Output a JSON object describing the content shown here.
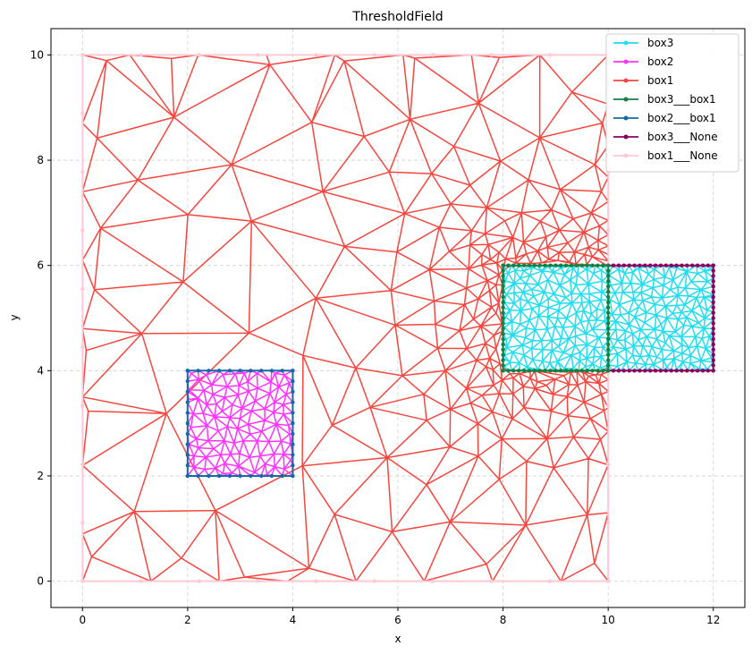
{
  "chart_data": {
    "type": "line",
    "title": "ThresholdField",
    "xlabel": "x",
    "ylabel": "y",
    "xlim": [
      -0.6,
      12.6
    ],
    "ylim": [
      -0.5,
      10.5
    ],
    "xticks": [
      0,
      2,
      4,
      6,
      8,
      10,
      12
    ],
    "yticks": [
      0,
      2,
      4,
      6,
      8,
      10
    ],
    "grid": true,
    "legend_position": "top-right",
    "series": [
      {
        "name": "box3",
        "color": "#22ddf0",
        "region": [
          8,
          4,
          12,
          6
        ],
        "boundary": [
          [
            8,
            4
          ],
          [
            12,
            4
          ],
          [
            12,
            6
          ],
          [
            8,
            6
          ],
          [
            8,
            4
          ]
        ]
      },
      {
        "name": "box2",
        "color": "#ff33ff",
        "region": [
          2,
          2,
          4,
          4
        ],
        "boundary": [
          [
            2,
            2
          ],
          [
            4,
            2
          ],
          [
            4,
            4
          ],
          [
            2,
            4
          ],
          [
            2,
            2
          ]
        ]
      },
      {
        "name": "box1",
        "color": "#f4473f",
        "region": [
          0,
          0,
          10,
          10
        ],
        "boundary": [
          [
            0,
            0
          ],
          [
            10,
            0
          ],
          [
            10,
            10
          ],
          [
            0,
            10
          ],
          [
            0,
            0
          ]
        ]
      },
      {
        "name": "box3___box1",
        "color": "#0f8244",
        "boundary": [
          [
            8,
            4
          ],
          [
            10,
            4
          ],
          [
            10,
            6
          ],
          [
            8,
            6
          ],
          [
            8,
            4
          ]
        ]
      },
      {
        "name": "box2___box1",
        "color": "#1569a6",
        "boundary": [
          [
            2,
            2
          ],
          [
            4,
            2
          ],
          [
            4,
            4
          ],
          [
            2,
            4
          ],
          [
            2,
            2
          ]
        ]
      },
      {
        "name": "box3___None",
        "color": "#8a0060",
        "boundary": [
          [
            10,
            4
          ],
          [
            12,
            4
          ],
          [
            12,
            6
          ],
          [
            10,
            6
          ]
        ]
      },
      {
        "name": "box1___None",
        "color": "#ffcad6",
        "boundary": [
          [
            0,
            0
          ],
          [
            10,
            0
          ],
          [
            10,
            10
          ],
          [
            0,
            10
          ],
          [
            0,
            0
          ]
        ]
      }
    ]
  }
}
